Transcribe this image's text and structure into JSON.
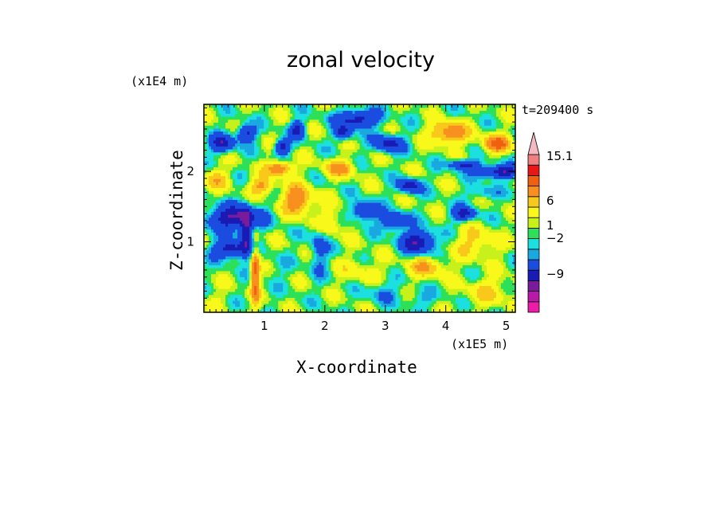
{
  "chart_data": {
    "type": "heatmap",
    "title": "zonal velocity",
    "xlabel": "X-coordinate",
    "ylabel": "Z-coordinate",
    "x_unit": "(x1E5 m)",
    "y_unit": "(x1E4 m)",
    "time_label": "t=209400 s",
    "xlim": [
      0,
      5.15
    ],
    "ylim": [
      0,
      2.95
    ],
    "x_ticks": [
      "1",
      "2",
      "3",
      "4",
      "5"
    ],
    "y_ticks": [
      "1",
      "2"
    ],
    "colorbar": {
      "levels": [
        -15,
        -12,
        -9,
        -6,
        -2,
        -1,
        0,
        1,
        2,
        4,
        6,
        9,
        12,
        15.1
      ],
      "labels": [
        "15.1",
        "6",
        "1",
        "−2",
        "−9"
      ],
      "colors": [
        "#ee1aa8",
        "#b81aa8",
        "#7a1a9c",
        "#1a1ab4",
        "#1a4ce0",
        "#1aa8e0",
        "#1ce0e0",
        "#2ce05a",
        "#c8f01a",
        "#f8f81a",
        "#f8c81a",
        "#f89020",
        "#f06010",
        "#e81818",
        "#f08080",
        "#f4b8c0"
      ]
    },
    "blobs": [
      {
        "x": 0.5,
        "z": 1.35,
        "rx": 0.45,
        "rz": 0.17,
        "v": -10
      },
      {
        "x": 0.45,
        "z": 0.9,
        "rx": 0.3,
        "rz": 0.13,
        "v": -9
      },
      {
        "x": 0.7,
        "z": 1.15,
        "rx": 0.1,
        "rz": 0.3,
        "v": -8
      },
      {
        "x": 0.85,
        "z": 0.55,
        "rx": 0.07,
        "rz": 0.45,
        "v": 9
      },
      {
        "x": 0.3,
        "z": 2.4,
        "rx": 0.2,
        "rz": 0.12,
        "v": -9
      },
      {
        "x": 0.7,
        "z": 2.55,
        "rx": 0.15,
        "rz": 0.12,
        "v": -8
      },
      {
        "x": 1.3,
        "z": 2.35,
        "rx": 0.12,
        "rz": 0.1,
        "v": -9
      },
      {
        "x": 1.55,
        "z": 2.6,
        "rx": 0.12,
        "rz": 0.12,
        "v": -8
      },
      {
        "x": 2.55,
        "z": 2.75,
        "rx": 0.35,
        "rz": 0.12,
        "v": -9
      },
      {
        "x": 3.05,
        "z": 2.4,
        "rx": 0.25,
        "rz": 0.12,
        "v": -8
      },
      {
        "x": 2.3,
        "z": 2.55,
        "rx": 0.14,
        "rz": 0.1,
        "v": -8
      },
      {
        "x": 3.55,
        "z": 1.0,
        "rx": 0.28,
        "rz": 0.16,
        "v": -10
      },
      {
        "x": 3.15,
        "z": 1.3,
        "rx": 0.22,
        "rz": 0.12,
        "v": -8
      },
      {
        "x": 2.65,
        "z": 1.45,
        "rx": 0.2,
        "rz": 0.13,
        "v": -8
      },
      {
        "x": 3.4,
        "z": 1.8,
        "rx": 0.18,
        "rz": 0.1,
        "v": -9
      },
      {
        "x": 4.3,
        "z": 1.4,
        "rx": 0.2,
        "rz": 0.1,
        "v": -8
      },
      {
        "x": 4.9,
        "z": 2.0,
        "rx": 0.35,
        "rz": 0.09,
        "v": -10
      },
      {
        "x": 4.3,
        "z": 2.1,
        "rx": 0.25,
        "rz": 0.07,
        "v": -8
      },
      {
        "x": 4.6,
        "z": 1.7,
        "rx": 0.25,
        "rz": 0.1,
        "v": -3
      },
      {
        "x": 1.55,
        "z": 1.6,
        "rx": 0.25,
        "rz": 0.2,
        "v": 8
      },
      {
        "x": 1.25,
        "z": 2.05,
        "rx": 0.22,
        "rz": 0.1,
        "v": 8
      },
      {
        "x": 0.95,
        "z": 1.8,
        "rx": 0.2,
        "rz": 0.12,
        "v": 6
      },
      {
        "x": 2.25,
        "z": 2.05,
        "rx": 0.25,
        "rz": 0.12,
        "v": 6
      },
      {
        "x": 4.05,
        "z": 2.55,
        "rx": 0.3,
        "rz": 0.15,
        "v": 8
      },
      {
        "x": 4.85,
        "z": 2.4,
        "rx": 0.22,
        "rz": 0.12,
        "v": 9
      },
      {
        "x": 4.5,
        "z": 1.0,
        "rx": 0.35,
        "rz": 0.2,
        "v": 4
      },
      {
        "x": 3.7,
        "z": 0.65,
        "rx": 0.3,
        "rz": 0.15,
        "v": 5
      },
      {
        "x": 2.6,
        "z": 0.6,
        "rx": 0.4,
        "rz": 0.2,
        "v": 2
      },
      {
        "x": 1.2,
        "z": 0.6,
        "rx": 0.25,
        "rz": 0.2,
        "v": -1
      },
      {
        "x": 2.95,
        "z": 0.3,
        "rx": 0.25,
        "rz": 0.15,
        "v": -3
      },
      {
        "x": 3.6,
        "z": 0.2,
        "rx": 0.3,
        "rz": 0.12,
        "v": -2
      },
      {
        "x": 4.7,
        "z": 0.3,
        "rx": 0.4,
        "rz": 0.2,
        "v": 3
      },
      {
        "x": 0.2,
        "z": 0.2,
        "rx": 0.25,
        "rz": 0.15,
        "v": 1
      },
      {
        "x": 1.9,
        "z": 0.9,
        "rx": 0.15,
        "rz": 0.35,
        "v": -4
      },
      {
        "x": 2.1,
        "z": 1.3,
        "rx": 0.25,
        "rz": 0.2,
        "v": 3
      },
      {
        "x": 0.2,
        "z": 1.9,
        "rx": 0.2,
        "rz": 0.15,
        "v": 4
      }
    ]
  }
}
